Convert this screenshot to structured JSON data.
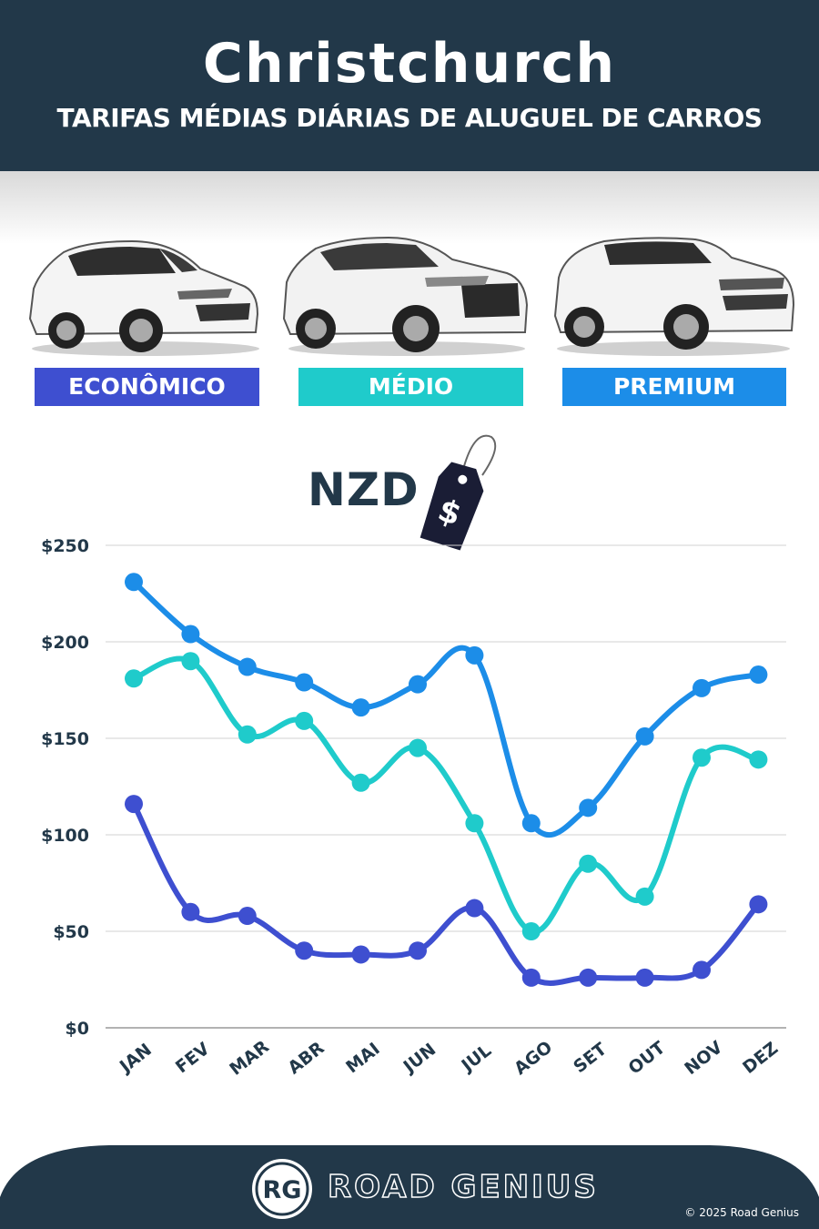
{
  "header": {
    "title": "Christchurch",
    "subtitle": "TARIFAS MÉDIAS DIÁRIAS DE ALUGUEL DE CARROS"
  },
  "categories": [
    {
      "label": "ECONÔMICO",
      "color": "#3e4fd0"
    },
    {
      "label": "MÉDIO",
      "color": "#1fcbcb"
    },
    {
      "label": "PREMIUM",
      "color": "#1c8de8"
    }
  ],
  "currency_label": "NZD",
  "price_tag_symbol": "$",
  "chart_data": {
    "type": "line",
    "categories": [
      "JAN",
      "FEV",
      "MAR",
      "ABR",
      "MAI",
      "JUN",
      "JUL",
      "AGO",
      "SET",
      "OUT",
      "NOV",
      "DEZ"
    ],
    "series": [
      {
        "name": "ECONÔMICO",
        "color": "#3e4fd0",
        "values": [
          116,
          60,
          58,
          40,
          38,
          40,
          62,
          26,
          26,
          26,
          30,
          64
        ]
      },
      {
        "name": "MÉDIO",
        "color": "#1fcbcb",
        "values": [
          181,
          190,
          152,
          159,
          127,
          145,
          106,
          50,
          85,
          68,
          140,
          139
        ]
      },
      {
        "name": "PREMIUM",
        "color": "#1c8de8",
        "values": [
          231,
          204,
          187,
          179,
          166,
          178,
          193,
          106,
          114,
          151,
          176,
          183
        ]
      }
    ],
    "ylim": [
      0,
      250
    ],
    "yticks": [
      "$0",
      "$50",
      "$100",
      "$150",
      "$200",
      "$250"
    ],
    "grid": true
  },
  "footer": {
    "brand": "ROAD GENIUS",
    "logo_text": "RG",
    "copyright": "© 2025 Road Genius",
    "background": "#223849"
  }
}
